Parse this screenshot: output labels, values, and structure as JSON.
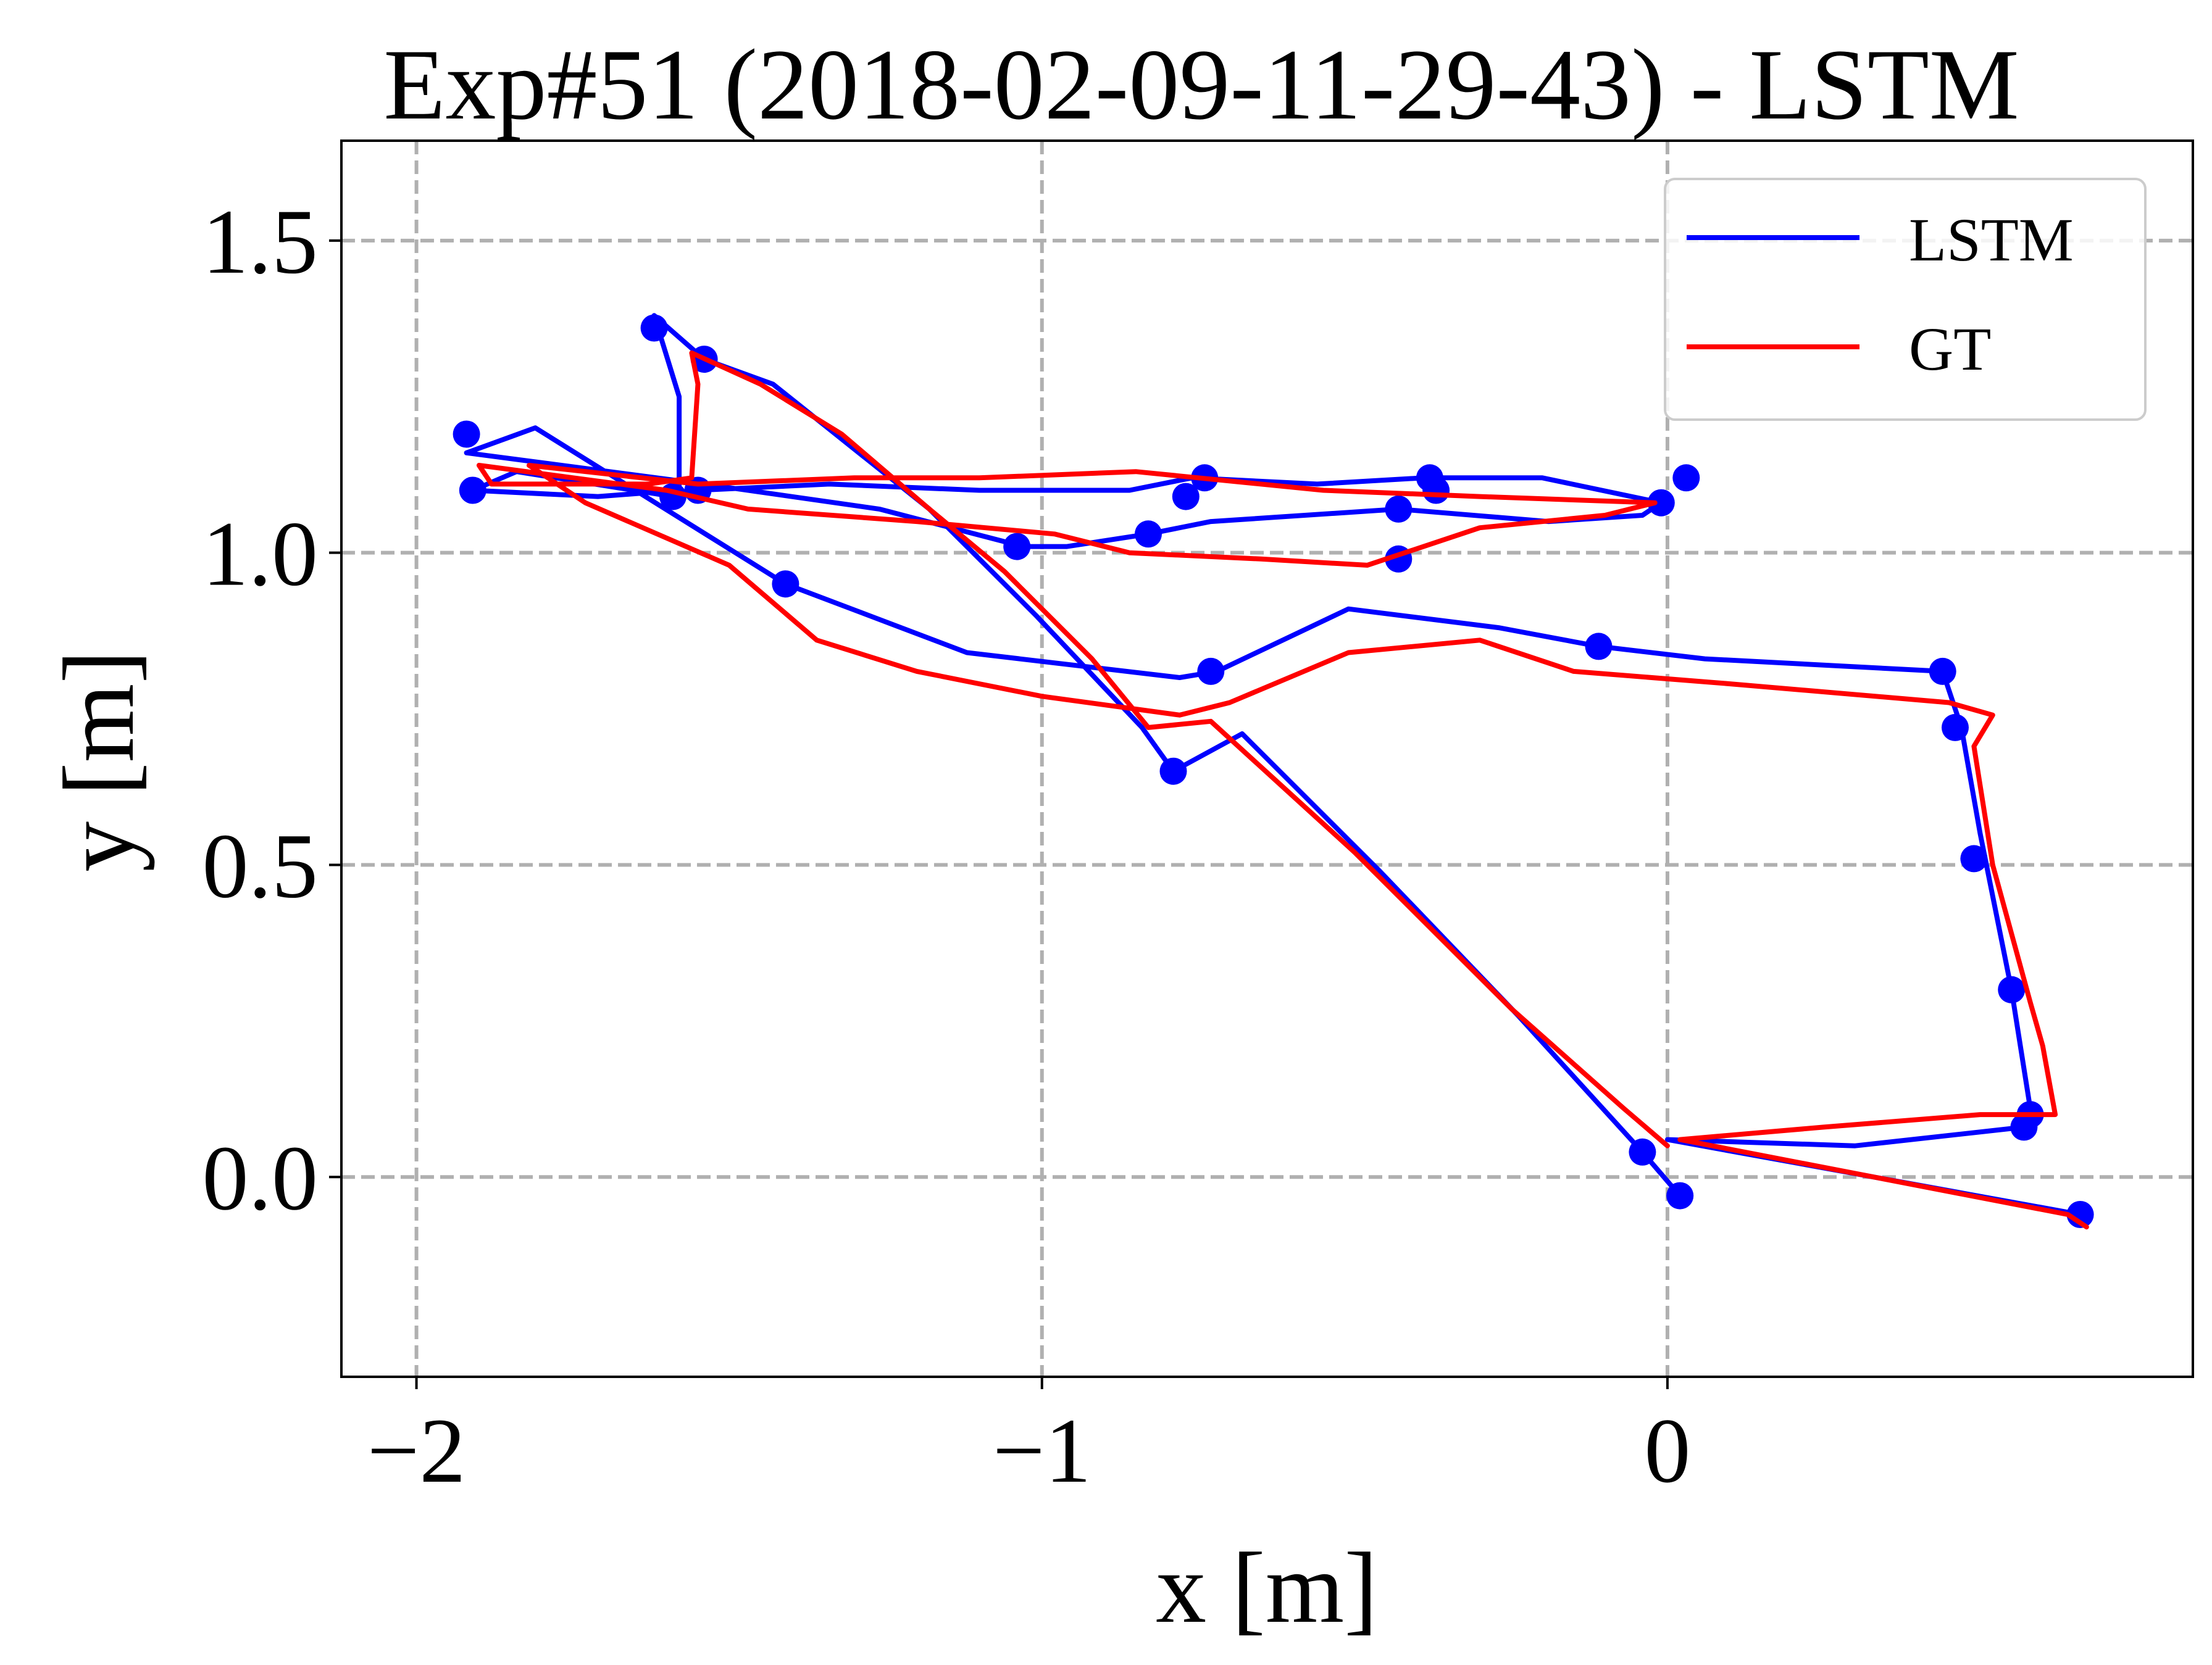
{
  "chart_data": {
    "type": "line",
    "title": "Exp#51 (2018-02-09-11-29-43) - LSTM",
    "xlabel": "x [m]",
    "ylabel": "y [m]",
    "xlim": [
      -2.12,
      0.84
    ],
    "ylim": [
      -0.32,
      1.66
    ],
    "x_ticks": [
      {
        "value": -2,
        "label": "−2"
      },
      {
        "value": -1,
        "label": "−1"
      },
      {
        "value": 0,
        "label": "0"
      }
    ],
    "y_ticks": [
      {
        "value": 0.0,
        "label": "0.0"
      },
      {
        "value": 0.5,
        "label": "0.5"
      },
      {
        "value": 1.0,
        "label": "1.0"
      },
      {
        "value": 1.5,
        "label": "1.5"
      }
    ],
    "grid": true,
    "legend_position": "top-right",
    "series": [
      {
        "name": "LSTM",
        "color": "#0000ff",
        "markers": true,
        "points": [
          [
            0.02,
            -0.03
          ],
          [
            -0.04,
            0.04
          ],
          [
            -0.24,
            0.26
          ],
          [
            -0.46,
            0.49
          ],
          [
            -0.68,
            0.71
          ],
          [
            -0.79,
            0.65
          ],
          [
            -0.84,
            0.72
          ],
          [
            -1.01,
            0.9
          ],
          [
            -1.18,
            1.07
          ],
          [
            -1.43,
            1.27
          ],
          [
            -1.54,
            1.31
          ],
          [
            -1.62,
            1.38
          ],
          [
            -1.58,
            1.25
          ],
          [
            -1.58,
            1.1
          ],
          [
            -1.71,
            1.09
          ],
          [
            -1.91,
            1.1
          ],
          [
            -1.84,
            1.13
          ],
          [
            -1.59,
            1.09
          ],
          [
            -1.55,
            1.1
          ],
          [
            -1.34,
            1.11
          ],
          [
            -1.1,
            1.1
          ],
          [
            -0.86,
            1.1
          ],
          [
            -0.76,
            1.12
          ],
          [
            -0.56,
            1.11
          ],
          [
            -0.39,
            1.12
          ],
          [
            -0.2,
            1.12
          ],
          [
            -0.01,
            1.08
          ],
          [
            -0.04,
            1.06
          ],
          [
            -0.19,
            1.05
          ],
          [
            -0.43,
            1.07
          ],
          [
            -0.73,
            1.05
          ],
          [
            -0.83,
            1.03
          ],
          [
            -0.96,
            1.01
          ],
          [
            -1.03,
            1.01
          ],
          [
            -1.26,
            1.07
          ],
          [
            -1.54,
            1.11
          ],
          [
            -1.92,
            1.16
          ],
          [
            -1.81,
            1.2
          ],
          [
            -1.65,
            1.1
          ],
          [
            -1.41,
            0.95
          ],
          [
            -1.12,
            0.84
          ],
          [
            -0.78,
            0.8
          ],
          [
            -0.72,
            0.81
          ],
          [
            -0.51,
            0.91
          ],
          [
            -0.27,
            0.88
          ],
          [
            -0.11,
            0.85
          ],
          [
            0.06,
            0.83
          ],
          [
            0.44,
            0.81
          ],
          [
            0.47,
            0.72
          ],
          [
            0.5,
            0.55
          ],
          [
            0.55,
            0.3
          ],
          [
            0.58,
            0.11
          ],
          [
            0.57,
            0.08
          ],
          [
            0.3,
            0.05
          ],
          [
            0.0,
            0.06
          ],
          [
            0.66,
            -0.06
          ]
        ],
        "marker_points": [
          [
            0.02,
            -0.03
          ],
          [
            -0.04,
            0.04
          ],
          [
            -0.79,
            0.65
          ],
          [
            -0.73,
            0.81
          ],
          [
            -1.41,
            0.95
          ],
          [
            -1.92,
            1.19
          ],
          [
            -1.91,
            1.1
          ],
          [
            -1.62,
            1.36
          ],
          [
            -1.54,
            1.31
          ],
          [
            -1.59,
            1.09
          ],
          [
            -1.55,
            1.1
          ],
          [
            -1.04,
            1.01
          ],
          [
            -0.83,
            1.03
          ],
          [
            -0.77,
            1.09
          ],
          [
            -0.74,
            1.12
          ],
          [
            -0.43,
            1.07
          ],
          [
            -0.43,
            0.99
          ],
          [
            -0.38,
            1.12
          ],
          [
            -0.37,
            1.1
          ],
          [
            -0.01,
            1.08
          ],
          [
            0.03,
            1.12
          ],
          [
            -0.11,
            0.85
          ],
          [
            0.44,
            0.81
          ],
          [
            0.46,
            0.72
          ],
          [
            0.49,
            0.51
          ],
          [
            0.55,
            0.3
          ],
          [
            0.58,
            0.1
          ],
          [
            0.57,
            0.08
          ],
          [
            0.66,
            -0.06
          ]
        ]
      },
      {
        "name": "GT",
        "color": "#ff0000",
        "markers": false,
        "points": [
          [
            0.0,
            0.05
          ],
          [
            -0.07,
            0.11
          ],
          [
            -0.25,
            0.27
          ],
          [
            -0.5,
            0.52
          ],
          [
            -0.73,
            0.73
          ],
          [
            -0.83,
            0.72
          ],
          [
            -0.92,
            0.83
          ],
          [
            -1.06,
            0.97
          ],
          [
            -1.18,
            1.07
          ],
          [
            -1.32,
            1.19
          ],
          [
            -1.45,
            1.27
          ],
          [
            -1.56,
            1.32
          ],
          [
            -1.55,
            1.27
          ],
          [
            -1.56,
            1.12
          ],
          [
            -1.63,
            1.11
          ],
          [
            -1.88,
            1.11
          ],
          [
            -1.9,
            1.14
          ],
          [
            -1.6,
            1.1
          ],
          [
            -1.47,
            1.07
          ],
          [
            -1.2,
            1.05
          ],
          [
            -0.98,
            1.03
          ],
          [
            -0.86,
            1.0
          ],
          [
            -0.65,
            0.99
          ],
          [
            -0.48,
            0.98
          ],
          [
            -0.42,
            1.0
          ],
          [
            -0.3,
            1.04
          ],
          [
            -0.1,
            1.06
          ],
          [
            -0.02,
            1.08
          ],
          [
            -0.3,
            1.09
          ],
          [
            -0.55,
            1.1
          ],
          [
            -0.85,
            1.13
          ],
          [
            -1.1,
            1.12
          ],
          [
            -1.3,
            1.12
          ],
          [
            -1.55,
            1.11
          ],
          [
            -1.82,
            1.14
          ],
          [
            -1.73,
            1.08
          ],
          [
            -1.5,
            0.98
          ],
          [
            -1.36,
            0.86
          ],
          [
            -1.2,
            0.81
          ],
          [
            -1.0,
            0.77
          ],
          [
            -0.78,
            0.74
          ],
          [
            -0.7,
            0.76
          ],
          [
            -0.51,
            0.84
          ],
          [
            -0.3,
            0.86
          ],
          [
            -0.15,
            0.81
          ],
          [
            0.1,
            0.79
          ],
          [
            0.45,
            0.76
          ],
          [
            0.52,
            0.74
          ],
          [
            0.49,
            0.69
          ],
          [
            0.52,
            0.5
          ],
          [
            0.58,
            0.28
          ],
          [
            0.6,
            0.21
          ],
          [
            0.62,
            0.1
          ],
          [
            0.5,
            0.1
          ],
          [
            0.25,
            0.08
          ],
          [
            0.02,
            0.06
          ],
          [
            0.64,
            -0.06
          ],
          [
            0.67,
            -0.08
          ]
        ]
      }
    ]
  }
}
